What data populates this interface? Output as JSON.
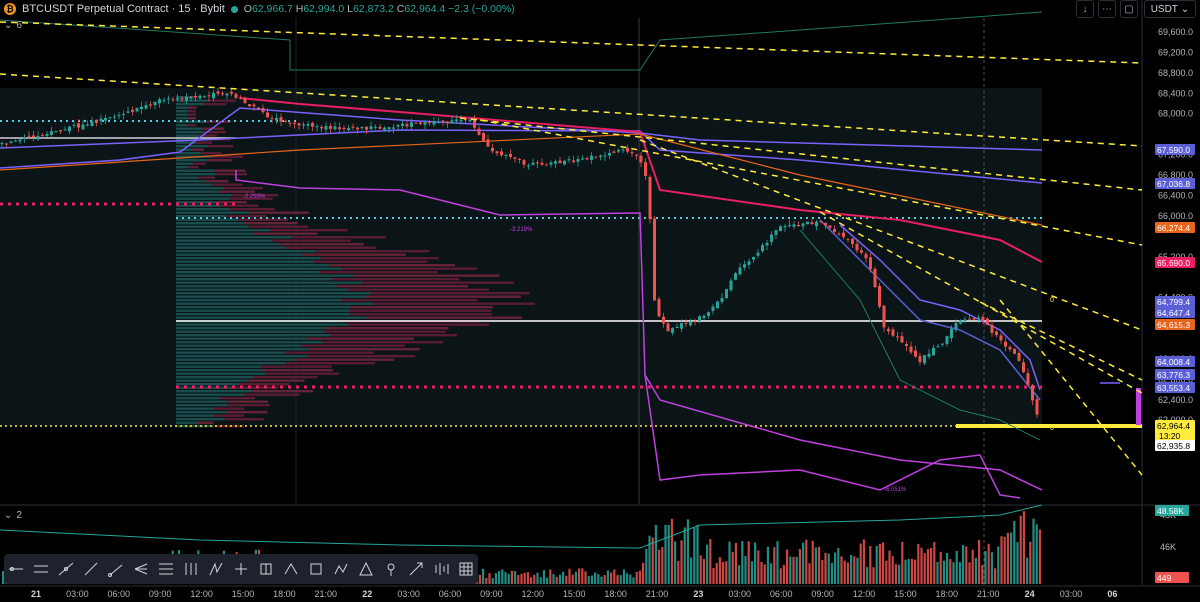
{
  "header": {
    "symbol": "BTCUSDT Perpetual Contract · 15 · Bybit",
    "open_label": "O",
    "open": "62,966.7",
    "high_label": "H",
    "high": "62,994.0",
    "low_label": "L",
    "low": "62,873.2",
    "close_label": "C",
    "close": "62,964.4",
    "change": "−2.3 (−0.00%)"
  },
  "indicators_count": "6",
  "volume_pane_count": "2",
  "currency": "USDT",
  "price_axis": {
    "ticks": [
      "69,600.0",
      "69,200.0",
      "68,800.0",
      "68,400.0",
      "68,000.0",
      "67,200.0",
      "66,800.0",
      "66,400.0",
      "66,000.0",
      "65,200.0",
      "64,400.0",
      "63,200.0",
      "62,800.0",
      "62,400.0",
      "62,000.0"
    ],
    "labels": [
      {
        "text": "67,590.0",
        "color": "#5b5fd6"
      },
      {
        "text": "67,036.8",
        "color": "#5b5fd6"
      },
      {
        "text": "66,274.4",
        "color": "#e8661c"
      },
      {
        "text": "65,690.0",
        "color": "#e91e63"
      },
      {
        "text": "64,799.4",
        "color": "#5b5fd6"
      },
      {
        "text": "64,647.4",
        "color": "#5b5fd6"
      },
      {
        "text": "64,615.3",
        "color": "#e8661c"
      },
      {
        "text": "64,008.4",
        "color": "#5b5fd6"
      },
      {
        "text": "63,776.3",
        "color": "#5b5fd6"
      },
      {
        "text": "63,553.4",
        "color": "#5b5fd6"
      },
      {
        "text": "62,964.4",
        "color": "#ffeb3b"
      },
      {
        "text": "13:20",
        "color": "#ffeb3b"
      },
      {
        "text": "62,935.8",
        "color": "#ffffff"
      }
    ]
  },
  "volume_axis": {
    "ticks": [
      "48K",
      "46K"
    ],
    "labels": [
      {
        "text": "48.58K",
        "color": "#26a69a"
      },
      {
        "text": "449",
        "color": "#ef5350"
      }
    ]
  },
  "time_axis": [
    "21",
    "03:00",
    "06:00",
    "09:00",
    "12:00",
    "15:00",
    "18:00",
    "21:00",
    "22",
    "03:00",
    "06:00",
    "09:00",
    "12:00",
    "15:00",
    "18:00",
    "21:00",
    "23",
    "03:00",
    "06:00",
    "09:00",
    "12:00",
    "15:00",
    "18:00",
    "21:00",
    "24",
    "03:00",
    "06"
  ],
  "chart_labels": [
    "-2.293%",
    "-3.219%",
    "-6.051%"
  ],
  "level_zero_labels": [
    "0",
    "0"
  ],
  "toolbar_tools": [
    "horizontal-line-tool",
    "parallel-channel-tool",
    "regression-tool",
    "trend-line-tool",
    "ray-tool",
    "pitchfork-tool",
    "fib-retracement-tool",
    "fib-extension-tool",
    "long-position-tool",
    "gann-tool",
    "volume-profile-tool",
    "forecast-tool",
    "rectangle-tool",
    "path-tool",
    "polyline-tool",
    "pin-tool",
    "arrow-tool",
    "bar-pattern-tool",
    "grid-tool"
  ]
}
